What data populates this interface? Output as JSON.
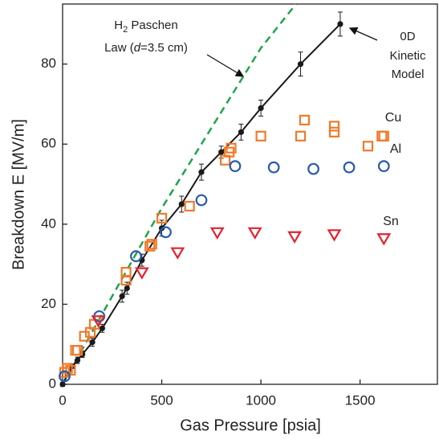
{
  "chart_data": {
    "type": "scatter",
    "xlabel": "Gas Pressure [psia]",
    "ylabel": "Breakdown E [MV/m]",
    "xlim": [
      0,
      1890
    ],
    "ylim": [
      0,
      95
    ],
    "xticks": [
      0,
      500,
      1000,
      1500
    ],
    "yticks": [
      0,
      20,
      40,
      60,
      80
    ],
    "annotations": [
      {
        "parts": [
          "H",
          "2",
          " Paschen"
        ]
      },
      {
        "parts": [
          "Law (",
          "d",
          "=3.5 cm)"
        ]
      },
      {
        "parts": [
          "0D"
        ]
      },
      {
        "parts": [
          "Kinetic"
        ]
      },
      {
        "parts": [
          "Model"
        ]
      }
    ],
    "series": [
      {
        "style": "dashed-line",
        "color": "#1ea54c",
        "x": [
          0,
          500,
          1000,
          1177
        ],
        "values": [
          0,
          44,
          84,
          95
        ]
      },
      {
        "style": "line-errorbar",
        "color": "#1a1a1a",
        "x": [
          0,
          25,
          50,
          75,
          100,
          150,
          200,
          300,
          325,
          400,
          500,
          600,
          700,
          800,
          900,
          1000,
          1200,
          1400
        ],
        "values": [
          0,
          2.5,
          4.5,
          6,
          7.5,
          10.5,
          14,
          22,
          24,
          31,
          39,
          45,
          53,
          58,
          63,
          69,
          80,
          90
        ],
        "errors": [
          0.5,
          0.5,
          0.5,
          0.8,
          0.8,
          1,
          1,
          1.5,
          1.5,
          1.5,
          2,
          2,
          2,
          1.5,
          2,
          2,
          3,
          3
        ]
      },
      {
        "name": "Cu",
        "style": "square",
        "color": "#ef7a2b",
        "x": [
          10,
          25,
          40,
          65,
          75,
          110,
          140,
          160,
          320,
          320,
          440,
          450,
          500,
          640,
          820,
          840,
          850,
          1000,
          1200,
          1220,
          1370,
          1370,
          1540,
          1610,
          1620
        ],
        "values": [
          3,
          4,
          3.5,
          8.5,
          8.5,
          12,
          13,
          15,
          26,
          28,
          34.5,
          35,
          41.5,
          44.5,
          56,
          58,
          59,
          62,
          62,
          66,
          63,
          64.5,
          59.5,
          62,
          62
        ]
      },
      {
        "name": "Al",
        "style": "circle",
        "color": "#2b5ca8",
        "x": [
          10,
          185,
          370,
          520,
          700,
          870,
          1065,
          1265,
          1445,
          1620
        ],
        "values": [
          2,
          17,
          32,
          38,
          46,
          54.5,
          54.2,
          53.8,
          54.2,
          54.5
        ]
      },
      {
        "name": "Sn",
        "style": "triangle",
        "color": "#e2232f",
        "x": [
          180,
          400,
          580,
          780,
          970,
          1170,
          1370,
          1620
        ],
        "values": [
          16,
          28,
          33,
          38,
          38,
          37,
          37.5,
          36.5
        ]
      }
    ]
  }
}
